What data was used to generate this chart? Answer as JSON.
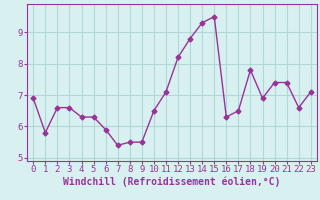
{
  "x": [
    0,
    1,
    2,
    3,
    4,
    5,
    6,
    7,
    8,
    9,
    10,
    11,
    12,
    13,
    14,
    15,
    16,
    17,
    18,
    19,
    20,
    21,
    22,
    23
  ],
  "y": [
    6.9,
    5.8,
    6.6,
    6.6,
    6.3,
    6.3,
    5.9,
    5.4,
    5.5,
    5.5,
    6.5,
    7.1,
    8.2,
    8.8,
    9.3,
    9.5,
    6.3,
    6.5,
    7.8,
    6.9,
    7.4,
    7.4,
    6.6,
    7.1
  ],
  "line_color": "#993399",
  "marker": "D",
  "marker_size": 2.5,
  "line_width": 1.0,
  "xlabel": "Windchill (Refroidissement éolien,°C)",
  "ylabel": "",
  "ylim": [
    4.9,
    9.9
  ],
  "xlim": [
    -0.5,
    23.5
  ],
  "yticks": [
    5,
    6,
    7,
    8,
    9
  ],
  "xticks": [
    0,
    1,
    2,
    3,
    4,
    5,
    6,
    7,
    8,
    9,
    10,
    11,
    12,
    13,
    14,
    15,
    16,
    17,
    18,
    19,
    20,
    21,
    22,
    23
  ],
  "background_color": "#d8f0f0",
  "grid_color": "#b0d8d8",
  "xlabel_color": "#993399",
  "tick_color": "#993399",
  "xlabel_fontsize": 7.0,
  "tick_fontsize": 6.5,
  "spine_color": "#993399"
}
